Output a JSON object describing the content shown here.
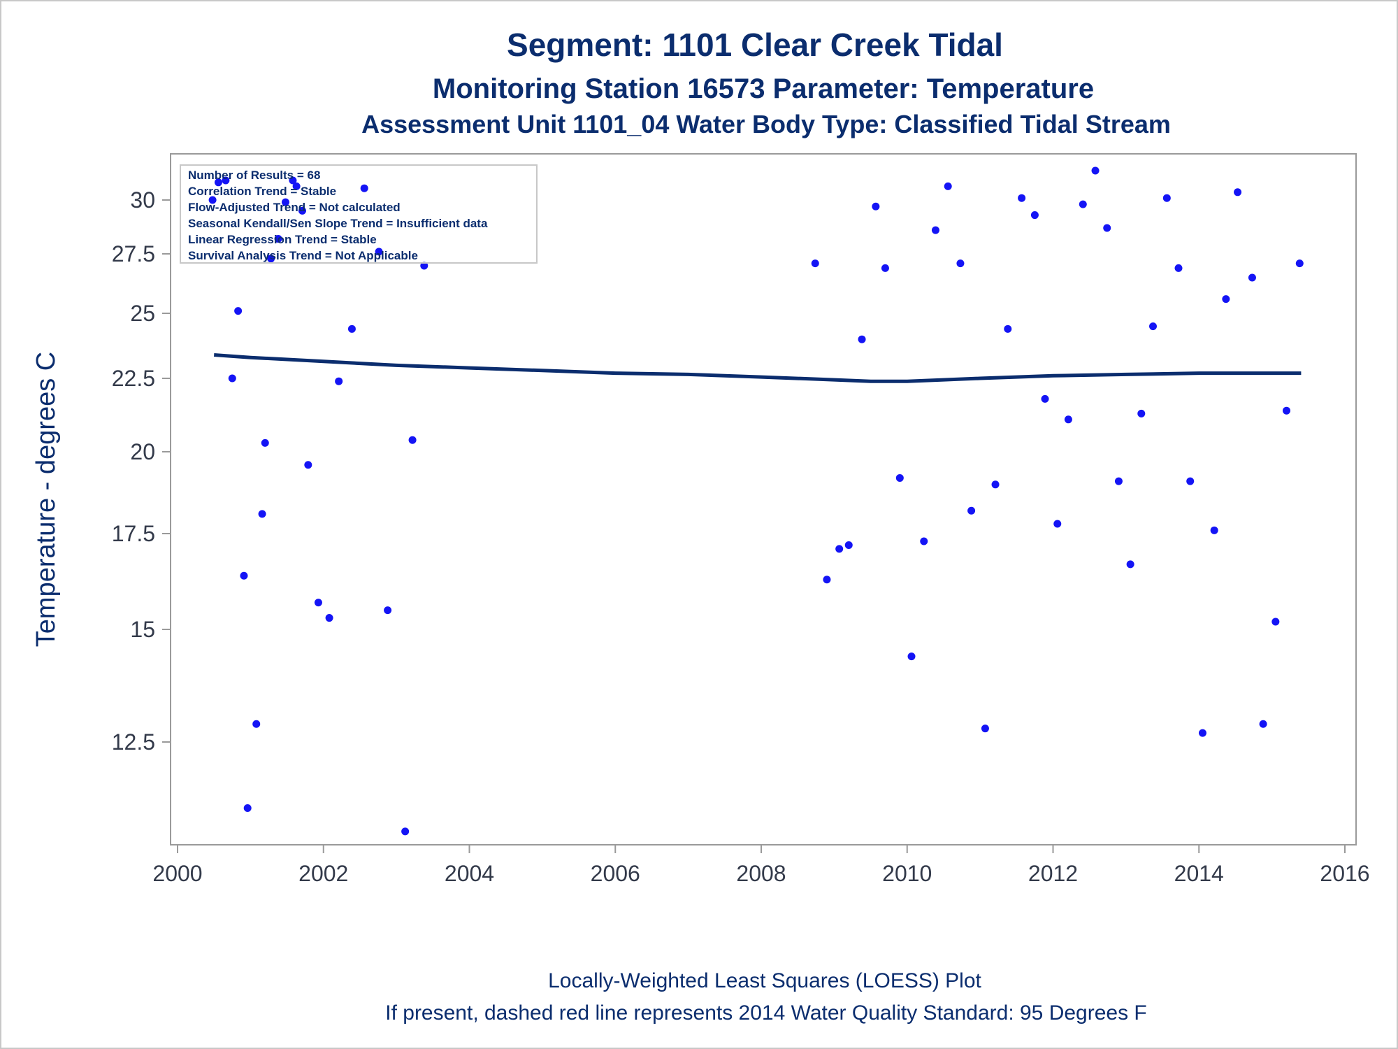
{
  "titles": {
    "line1": "Segment: 1101  Clear Creek Tidal",
    "line2": "Monitoring Station 16573 Parameter: Temperature",
    "line3": "Assessment Unit 1101_04   Water Body Type: Classified Tidal Stream"
  },
  "footnotes": {
    "line1": "Locally-Weighted Least Squares (LOESS) Plot",
    "line2": "If present, dashed red line represents 2014 Water Quality Standard: 95   Degrees F"
  },
  "inset": {
    "lines": [
      "Number of Results = 68",
      "Correlation Trend = Stable",
      "Flow-Adjusted Trend = Not calculated",
      "Seasonal Kendall/Sen Slope Trend = Insufficient data",
      "Linear Regression Trend = Stable",
      "Survival Analysis Trend = Not Applicable"
    ]
  },
  "colors": {
    "points": "#1414f5",
    "loess": "#0b2d6e",
    "text": "#0b2d6e",
    "axis": "#9a9a9a"
  },
  "chart_data": {
    "type": "scatter",
    "ylabel": "Temperature - degrees C",
    "xlabel": "",
    "xlim": [
      2000,
      2016
    ],
    "xticks": [
      2000,
      2002,
      2004,
      2006,
      2008,
      2010,
      2012,
      2014,
      2016
    ],
    "xtick_labels": [
      "2000",
      "2002",
      "2004",
      "2006",
      "2008",
      "2010",
      "2012",
      "2014",
      "2016"
    ],
    "ytick_values": [
      12.5,
      15,
      17.5,
      20,
      22.5,
      25,
      27.5,
      30
    ],
    "ytick_labels": [
      "12.5",
      "15",
      "17.5",
      "20",
      "22.5",
      "25",
      "27.5",
      "30"
    ],
    "y_scale": "nonlinear (axis as drawn)",
    "grid": false,
    "legend": "inset top-left",
    "series": [
      {
        "points": [
          [
            2000.48,
            30.0
          ],
          [
            2000.56,
            30.9
          ],
          [
            2000.66,
            31.0
          ],
          [
            2000.75,
            22.5
          ],
          [
            2000.83,
            25.1
          ],
          [
            2000.91,
            16.4
          ],
          [
            2000.96,
            10.8
          ],
          [
            2001.08,
            12.9
          ],
          [
            2001.16,
            18.1
          ],
          [
            2001.2,
            20.3
          ],
          [
            2001.28,
            27.3
          ],
          [
            2001.38,
            28.2
          ],
          [
            2001.48,
            29.9
          ],
          [
            2001.58,
            31.0
          ],
          [
            2001.63,
            30.7
          ],
          [
            2001.71,
            29.5
          ],
          [
            2001.79,
            19.6
          ],
          [
            2001.93,
            15.7
          ],
          [
            2002.08,
            15.3
          ],
          [
            2002.21,
            22.4
          ],
          [
            2002.39,
            24.4
          ],
          [
            2002.56,
            30.6
          ],
          [
            2002.76,
            27.6
          ],
          [
            2002.88,
            15.5
          ],
          [
            2003.12,
            10.2
          ],
          [
            2003.22,
            20.4
          ],
          [
            2003.38,
            27.0
          ],
          [
            2008.74,
            27.1
          ],
          [
            2008.9,
            16.3
          ],
          [
            2009.07,
            17.1
          ],
          [
            2009.2,
            17.2
          ],
          [
            2009.38,
            24.0
          ],
          [
            2009.57,
            29.7
          ],
          [
            2009.7,
            26.9
          ],
          [
            2009.9,
            19.2
          ],
          [
            2010.06,
            14.4
          ],
          [
            2010.23,
            17.3
          ],
          [
            2010.39,
            28.6
          ],
          [
            2010.56,
            30.7
          ],
          [
            2010.73,
            27.1
          ],
          [
            2010.88,
            18.2
          ],
          [
            2011.07,
            12.8
          ],
          [
            2011.21,
            19.0
          ],
          [
            2011.38,
            24.4
          ],
          [
            2011.57,
            30.1
          ],
          [
            2011.75,
            29.3
          ],
          [
            2011.89,
            21.8
          ],
          [
            2012.06,
            17.8
          ],
          [
            2012.21,
            21.1
          ],
          [
            2012.41,
            29.8
          ],
          [
            2012.58,
            31.5
          ],
          [
            2012.74,
            28.7
          ],
          [
            2012.9,
            19.1
          ],
          [
            2013.06,
            16.7
          ],
          [
            2013.21,
            21.3
          ],
          [
            2013.37,
            24.5
          ],
          [
            2013.56,
            30.1
          ],
          [
            2013.72,
            26.9
          ],
          [
            2013.88,
            19.1
          ],
          [
            2014.05,
            12.7
          ],
          [
            2014.21,
            17.6
          ],
          [
            2014.37,
            25.6
          ],
          [
            2014.53,
            30.4
          ],
          [
            2014.73,
            26.5
          ],
          [
            2014.88,
            12.9
          ],
          [
            2015.05,
            15.2
          ],
          [
            2015.2,
            21.4
          ],
          [
            2015.38,
            27.1
          ]
        ]
      },
      {
        "type": "line",
        "x": [
          2000.5,
          2001.0,
          2002.0,
          2003.0,
          2004.0,
          2005.0,
          2006.0,
          2007.0,
          2008.0,
          2009.0,
          2009.5,
          2010.0,
          2010.5,
          2011.0,
          2012.0,
          2013.0,
          2014.0,
          2015.0,
          2015.4
        ],
        "values": [
          23.4,
          23.3,
          23.15,
          23.0,
          22.9,
          22.8,
          22.7,
          22.65,
          22.55,
          22.45,
          22.4,
          22.4,
          22.45,
          22.5,
          22.6,
          22.65,
          22.7,
          22.7,
          22.7
        ]
      }
    ]
  }
}
